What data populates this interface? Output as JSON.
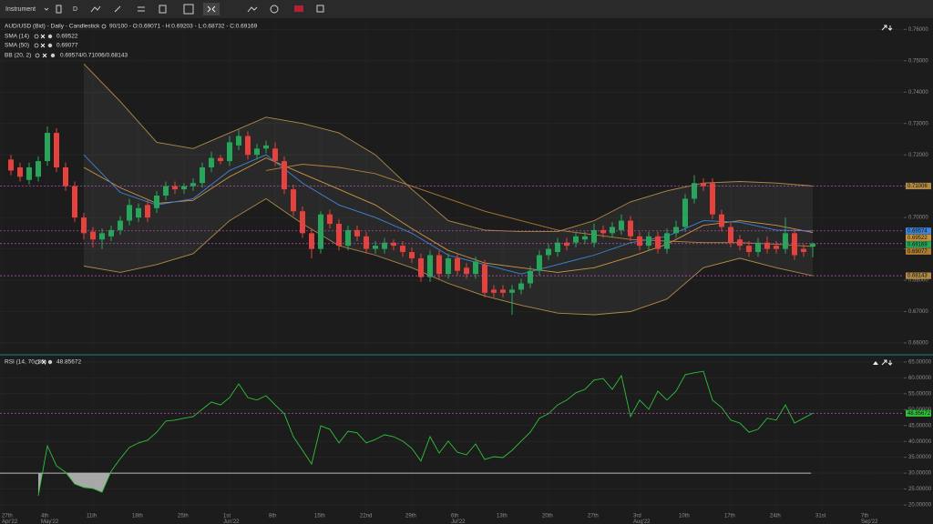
{
  "toolbar": {
    "instrument": "Instrument",
    "timeframe": "D"
  },
  "chart_data": [
    {
      "type": "candlestick",
      "title": "AUD/USD (Bid) - Daily - Candlestick",
      "subtitle": "90/100 - O:0.69071 - H:0.69203 - L:0.68732 - C:0.69169",
      "up_color": "#26a65b",
      "down_color": "#e5413d",
      "x": [
        1,
        2,
        3,
        4,
        5,
        6,
        7,
        8,
        9,
        10,
        11,
        12,
        13,
        14,
        15,
        16,
        17,
        18,
        19,
        20,
        21,
        22,
        23,
        24,
        25,
        26,
        27,
        28,
        29,
        30,
        31,
        32,
        33,
        34,
        35,
        36,
        37,
        38,
        39,
        40,
        41,
        42,
        43,
        44,
        45,
        46,
        47,
        48,
        49,
        50,
        51,
        52,
        53,
        54,
        55,
        56,
        57,
        58,
        59,
        60,
        61,
        62,
        63,
        64,
        65,
        66,
        67,
        68,
        69,
        70,
        71,
        72,
        73,
        74,
        75,
        76,
        77,
        78,
        79,
        80,
        81,
        82,
        83,
        84,
        85,
        86,
        87,
        88,
        89
      ],
      "open": [
        0.7185,
        0.716,
        0.712,
        0.713,
        0.718,
        0.727,
        0.716,
        0.71,
        0.7,
        0.6955,
        0.693,
        0.694,
        0.696,
        0.699,
        0.7,
        0.704,
        0.703,
        0.707,
        0.71,
        0.709,
        0.71,
        0.711,
        0.716,
        0.719,
        0.718,
        0.723,
        0.726,
        0.72,
        0.722,
        0.722,
        0.718,
        0.709,
        0.702,
        0.695,
        0.69,
        0.701,
        0.698,
        0.691,
        0.696,
        0.694,
        0.69,
        0.69,
        0.692,
        0.691,
        0.689,
        0.687,
        0.681,
        0.688,
        0.682,
        0.687,
        0.684,
        0.682,
        0.685,
        0.677,
        0.677,
        0.676,
        0.677,
        0.679,
        0.683,
        0.688,
        0.689,
        0.692,
        0.692,
        0.693,
        0.692,
        0.696,
        0.695,
        0.696,
        0.699,
        0.694,
        0.691,
        0.694,
        0.69,
        0.695,
        0.697,
        0.706,
        0.711,
        0.711,
        0.701,
        0.697,
        0.693,
        0.691,
        0.689,
        0.692,
        0.691,
        0.69,
        0.695,
        0.69,
        0.69071
      ],
      "high": [
        0.72,
        0.7175,
        0.7175,
        0.7195,
        0.729,
        0.7285,
        0.7175,
        0.7115,
        0.7015,
        0.697,
        0.6965,
        0.6975,
        0.7005,
        0.706,
        0.7045,
        0.7055,
        0.7085,
        0.7115,
        0.7115,
        0.711,
        0.7125,
        0.7175,
        0.721,
        0.72,
        0.726,
        0.728,
        0.7275,
        0.7235,
        0.7245,
        0.724,
        0.7195,
        0.7105,
        0.7035,
        0.6965,
        0.702,
        0.7025,
        0.6995,
        0.6975,
        0.6975,
        0.6955,
        0.6925,
        0.6935,
        0.693,
        0.6925,
        0.6905,
        0.6885,
        0.6895,
        0.6895,
        0.6885,
        0.6885,
        0.6855,
        0.6875,
        0.6865,
        0.6785,
        0.6785,
        0.6785,
        0.6805,
        0.6845,
        0.6895,
        0.6915,
        0.6935,
        0.6935,
        0.6955,
        0.6955,
        0.698,
        0.6975,
        0.6985,
        0.701,
        0.7005,
        0.6955,
        0.6955,
        0.6955,
        0.6965,
        0.699,
        0.7075,
        0.7135,
        0.7125,
        0.7125,
        0.7025,
        0.6985,
        0.6945,
        0.6925,
        0.6935,
        0.694,
        0.6925,
        0.7,
        0.6965,
        0.6915,
        0.69203
      ],
      "low": [
        0.7135,
        0.7115,
        0.7105,
        0.7115,
        0.7165,
        0.7145,
        0.7085,
        0.6985,
        0.693,
        0.6905,
        0.69,
        0.6925,
        0.6945,
        0.6975,
        0.6985,
        0.6985,
        0.7015,
        0.7055,
        0.7075,
        0.7075,
        0.7085,
        0.7095,
        0.7145,
        0.717,
        0.7165,
        0.7215,
        0.7185,
        0.7185,
        0.7205,
        0.7165,
        0.7075,
        0.7005,
        0.6935,
        0.687,
        0.6885,
        0.6965,
        0.6895,
        0.6895,
        0.6925,
        0.6885,
        0.6885,
        0.6885,
        0.6895,
        0.6875,
        0.6855,
        0.6795,
        0.6795,
        0.6805,
        0.6805,
        0.6815,
        0.6805,
        0.6805,
        0.6745,
        0.6745,
        0.6745,
        0.669,
        0.6755,
        0.6775,
        0.6815,
        0.6865,
        0.6875,
        0.6895,
        0.6905,
        0.6915,
        0.6905,
        0.6935,
        0.6935,
        0.6945,
        0.6925,
        0.6895,
        0.6895,
        0.6885,
        0.6885,
        0.6935,
        0.6955,
        0.7045,
        0.7085,
        0.6995,
        0.6955,
        0.6905,
        0.6895,
        0.6875,
        0.6875,
        0.6885,
        0.6885,
        0.6885,
        0.6865,
        0.6875,
        0.68732
      ],
      "close": [
        0.715,
        0.713,
        0.716,
        0.718,
        0.727,
        0.716,
        0.71,
        0.7,
        0.695,
        0.693,
        0.695,
        0.696,
        0.699,
        0.704,
        0.703,
        0.7,
        0.707,
        0.71,
        0.709,
        0.71,
        0.711,
        0.716,
        0.719,
        0.718,
        0.724,
        0.726,
        0.72,
        0.722,
        0.723,
        0.718,
        0.709,
        0.702,
        0.695,
        0.69,
        0.701,
        0.698,
        0.691,
        0.696,
        0.694,
        0.69,
        0.691,
        0.692,
        0.691,
        0.689,
        0.687,
        0.681,
        0.688,
        0.682,
        0.687,
        0.683,
        0.682,
        0.686,
        0.676,
        0.676,
        0.676,
        0.677,
        0.679,
        0.683,
        0.688,
        0.69,
        0.692,
        0.691,
        0.694,
        0.694,
        0.696,
        0.695,
        0.697,
        0.699,
        0.694,
        0.691,
        0.694,
        0.69,
        0.695,
        0.697,
        0.706,
        0.711,
        0.71,
        0.701,
        0.697,
        0.692,
        0.691,
        0.689,
        0.692,
        0.69,
        0.69,
        0.695,
        0.688,
        0.689,
        0.69169
      ],
      "overlays": [
        {
          "type": "line",
          "name": "SMA (14)",
          "color": "#c9913a",
          "x": [
            9,
            13,
            17,
            21,
            25,
            29,
            33,
            37,
            41,
            45,
            49,
            53,
            57,
            61,
            65,
            69,
            73,
            77,
            81,
            85,
            89
          ],
          "values": [
            0.716,
            0.7095,
            0.7045,
            0.7055,
            0.713,
            0.719,
            0.714,
            0.709,
            0.704,
            0.6965,
            0.6895,
            0.6855,
            0.684,
            0.6825,
            0.684,
            0.6875,
            0.6915,
            0.6975,
            0.699,
            0.6975,
            0.69522
          ]
        },
        {
          "type": "line",
          "name": "SMA (50)",
          "color": "#b07a2e",
          "x": [
            29,
            33,
            37,
            41,
            45,
            49,
            53,
            57,
            61,
            65,
            69,
            73,
            77,
            81,
            85,
            89
          ],
          "values": [
            0.715,
            0.717,
            0.716,
            0.714,
            0.71,
            0.706,
            0.702,
            0.699,
            0.696,
            0.6945,
            0.693,
            0.6925,
            0.692,
            0.692,
            0.6915,
            0.69077
          ]
        },
        {
          "type": "band",
          "name": "BB (20, 2)",
          "color": "#b08a45",
          "middle_color": "#3d85d8",
          "header_value": "0.69574/0.71006/0.68143",
          "x": [
            9,
            13,
            17,
            21,
            25,
            29,
            33,
            37,
            41,
            45,
            49,
            53,
            57,
            61,
            65,
            69,
            73,
            77,
            81,
            85,
            89
          ],
          "upper": [
            0.749,
            0.737,
            0.724,
            0.722,
            0.727,
            0.732,
            0.73,
            0.727,
            0.72,
            0.709,
            0.699,
            0.696,
            0.6955,
            0.6955,
            0.699,
            0.705,
            0.7085,
            0.711,
            0.7115,
            0.711,
            0.71006
          ],
          "middle": [
            0.72,
            0.708,
            0.704,
            0.706,
            0.715,
            0.72,
            0.711,
            0.704,
            0.7,
            0.695,
            0.688,
            0.685,
            0.682,
            0.685,
            0.688,
            0.692,
            0.694,
            0.699,
            0.6985,
            0.696,
            0.69574
          ],
          "lower": [
            0.6845,
            0.6825,
            0.685,
            0.6885,
            0.699,
            0.706,
            0.698,
            0.691,
            0.688,
            0.684,
            0.679,
            0.675,
            0.672,
            0.6695,
            0.669,
            0.67,
            0.674,
            0.684,
            0.687,
            0.684,
            0.68143
          ]
        }
      ],
      "xlim": [
        -0.2,
        99
      ],
      "ylim": [
        0.6568,
        0.763
      ],
      "yticks": [
        {
          "value": 0.66,
          "label": "0.66000"
        },
        {
          "value": 0.67,
          "label": "0.67000"
        },
        {
          "value": 0.68,
          "label": "0.68000"
        },
        {
          "value": 0.69,
          "label": "0.69000"
        },
        {
          "value": 0.7,
          "label": "0.70000"
        },
        {
          "value": 0.71,
          "label": "0.71000"
        },
        {
          "value": 0.72,
          "label": "0.72000"
        },
        {
          "value": 0.73,
          "label": "0.73000"
        },
        {
          "value": 0.74,
          "label": "0.74000"
        },
        {
          "value": 0.75,
          "label": "0.75000"
        },
        {
          "value": 0.76,
          "label": "0.76000"
        }
      ],
      "grid": true
    },
    {
      "type": "line",
      "title": "RSI (14, 70, 30)",
      "levels": [
        70,
        30
      ],
      "x": [
        1,
        2,
        3,
        4,
        5,
        6,
        7,
        8,
        9,
        10,
        11,
        12,
        13,
        14,
        15,
        16,
        17,
        18,
        19,
        20,
        21,
        22,
        23,
        24,
        25,
        26,
        27,
        28,
        29,
        30,
        31,
        32,
        33,
        34,
        35,
        36,
        37,
        38,
        39,
        40,
        41,
        42,
        43,
        44,
        45,
        46,
        47,
        48,
        49,
        50,
        51,
        52,
        53,
        54,
        55,
        56,
        57,
        58,
        59,
        60,
        61,
        62,
        63,
        64,
        65,
        66,
        67,
        68,
        69,
        70,
        71,
        72,
        73,
        74,
        75,
        76,
        77,
        78,
        79,
        80,
        81,
        82,
        83,
        84,
        85,
        86,
        87,
        88,
        89
      ],
      "color": "#2fc13a",
      "values": [
        null,
        null,
        null,
        22.9,
        38.6,
        32.3,
        30.3,
        26.6,
        25.5,
        25.2,
        24.0,
        30.6,
        34.6,
        38.1,
        39.5,
        40.4,
        42.9,
        46.4,
        46.7,
        47.3,
        47.8,
        50.1,
        52.4,
        51.5,
        53.8,
        58.1,
        53.8,
        53.0,
        54.4,
        51.5,
        48.7,
        41.5,
        37.2,
        32.9,
        44.9,
        43.8,
        39.5,
        43.2,
        42.7,
        39.5,
        40.6,
        42.1,
        41.5,
        40.1,
        37.8,
        33.8,
        41.5,
        36.3,
        40.1,
        36.6,
        35.8,
        39.2,
        34.3,
        35.2,
        34.9,
        37.2,
        40.1,
        42.9,
        47.3,
        48.7,
        51.5,
        53.0,
        55.3,
        56.4,
        59.3,
        59.8,
        56.4,
        60.7,
        47.8,
        53.0,
        50.1,
        55.8,
        53.0,
        55.8,
        61.0,
        61.6,
        62.1,
        53.0,
        50.7,
        46.7,
        45.8,
        42.9,
        43.8,
        47.3,
        46.7,
        51.5,
        45.8,
        47.3,
        48.85672
      ],
      "xlim": [
        -0.2,
        99
      ],
      "ylim": [
        18,
        66.7
      ],
      "yticks": [
        {
          "value": 20,
          "label": "20.00000"
        },
        {
          "value": 25,
          "label": "25.00000"
        },
        {
          "value": 30,
          "label": "30.00000"
        },
        {
          "value": 35,
          "label": "35.00000"
        },
        {
          "value": 40,
          "label": "40.00000"
        },
        {
          "value": 45,
          "label": "45.00000"
        },
        {
          "value": 50,
          "label": "50.00000"
        },
        {
          "value": 55,
          "label": "55.00000"
        },
        {
          "value": 60,
          "label": "60.00000"
        },
        {
          "value": 65,
          "label": "65.00000"
        }
      ],
      "xticks": [
        {
          "value": 0,
          "label": "27th"
        },
        {
          "value": 5,
          "label": "4th"
        },
        {
          "value": 10,
          "label": "11th"
        },
        {
          "value": 15,
          "label": "18th"
        },
        {
          "value": 20,
          "label": "25th"
        },
        {
          "value": 25,
          "label": "1st"
        },
        {
          "value": 30,
          "label": "8th"
        },
        {
          "value": 35,
          "label": "15th"
        },
        {
          "value": 40,
          "label": "22nd"
        },
        {
          "value": 45,
          "label": "29th"
        },
        {
          "value": 50,
          "label": "6th"
        },
        {
          "value": 55,
          "label": "13th"
        },
        {
          "value": 60,
          "label": "20th"
        },
        {
          "value": 65,
          "label": "27th"
        },
        {
          "value": 70,
          "label": "3rd"
        },
        {
          "value": 75,
          "label": "10th"
        },
        {
          "value": 80,
          "label": "17th"
        },
        {
          "value": 85,
          "label": "24th"
        },
        {
          "value": 90,
          "label": "31st"
        },
        {
          "value": 95,
          "label": "7th"
        }
      ],
      "month_labels": [
        {
          "value": 0,
          "label": "Apr'22"
        },
        {
          "value": 5,
          "label": "May'22"
        },
        {
          "value": 25,
          "label": "Jun'22"
        },
        {
          "value": 50,
          "label": "Jul'22"
        },
        {
          "value": 70,
          "label": "Aug'22"
        },
        {
          "value": 95,
          "label": "Sep'22"
        }
      ],
      "grid": true
    }
  ]
}
